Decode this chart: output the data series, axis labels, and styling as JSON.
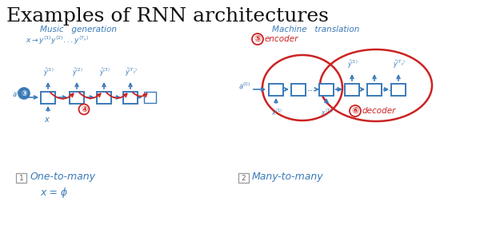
{
  "title": "Examples of RNN architectures",
  "title_fontsize": 18,
  "title_color": "#111111",
  "bg_color": "#ffffff",
  "blue_color": "#3a7ab8",
  "red_color": "#cc2222",
  "left_label": "Music   generation",
  "right_label": "Machine   translation",
  "bottom_left_label": "One-to-many",
  "bottom_right_label": "Many-to-many",
  "x_eq_phi": "x = ϕ",
  "figw": 6.0,
  "figh": 2.87,
  "dpi": 100
}
